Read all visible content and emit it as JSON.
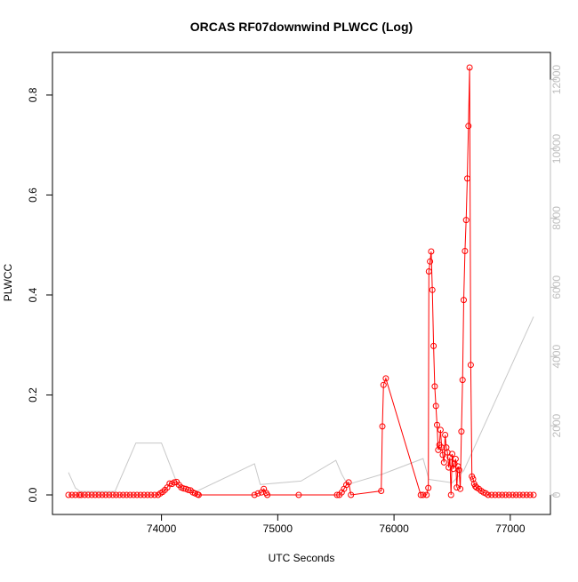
{
  "chart_data": {
    "type": "line",
    "title": "ORCAS RF07downwind PLWCC (Log)",
    "xlabel": "UTC Seconds",
    "ylabel": "PLWCC",
    "xlim": [
      73200,
      77200
    ],
    "ylim": [
      0,
      0.855
    ],
    "y2lim": [
      0,
      12350
    ],
    "x_ticks": [
      74000,
      75000,
      76000,
      77000
    ],
    "y_ticks": [
      0.0,
      0.2,
      0.4,
      0.6,
      0.8
    ],
    "y_tick_labels": [
      "0.0",
      "0.2",
      "0.4",
      "0.6",
      "0.8"
    ],
    "y2_ticks": [
      0,
      2000,
      4000,
      6000,
      8000,
      10000,
      12000
    ],
    "grid": false,
    "colors": {
      "primary": "#ff0000",
      "secondary": "#c8c8c8",
      "axis": "#000000",
      "axis2": "#bebebe"
    },
    "series": [
      {
        "axis": "left",
        "color": "#ff0000",
        "markers": "open-circle",
        "x": [
          73200,
          73230,
          73260,
          73290,
          73310,
          73340,
          73370,
          73400,
          73430,
          73460,
          73490,
          73520,
          73550,
          73580,
          73610,
          73640,
          73670,
          73700,
          73730,
          73760,
          73790,
          73820,
          73850,
          73880,
          73910,
          73940,
          73970,
          73990,
          74010,
          74030,
          74050,
          74070,
          74090,
          74110,
          74130,
          74150,
          74170,
          74190,
          74210,
          74230,
          74250,
          74270,
          74290,
          74310,
          74320,
          74800,
          74830,
          74860,
          74880,
          74900,
          74910,
          75180,
          75510,
          75530,
          75550,
          75570,
          75590,
          75610,
          75630,
          75890,
          75900,
          75910,
          75930,
          76230,
          76250,
          76280,
          76295,
          76300,
          76310,
          76320,
          76330,
          76340,
          76350,
          76360,
          76370,
          76380,
          76390,
          76400,
          76410,
          76420,
          76430,
          76440,
          76450,
          76460,
          76470,
          76480,
          76490,
          76500,
          76510,
          76520,
          76530,
          76540,
          76550,
          76560,
          76570,
          76580,
          76590,
          76600,
          76610,
          76620,
          76630,
          76640,
          76650,
          76660,
          76670,
          76680,
          76690,
          76700,
          76710,
          76730,
          76750,
          76770,
          76790,
          76810,
          76840,
          76870,
          76900,
          76930,
          76960,
          76990,
          77020,
          77050,
          77080,
          77110,
          77140,
          77170,
          77200
        ],
        "y": [
          0.0,
          0.0,
          0.0,
          0.0,
          0.0,
          0.0,
          0.0,
          0.0,
          0.0,
          0.0,
          0.0,
          0.0,
          0.0,
          0.0,
          0.0,
          0.0,
          0.0,
          0.0,
          0.0,
          0.0,
          0.0,
          0.0,
          0.0,
          0.0,
          0.0,
          0.0,
          0.0,
          0.003,
          0.006,
          0.01,
          0.015,
          0.023,
          0.022,
          0.025,
          0.026,
          0.02,
          0.015,
          0.013,
          0.012,
          0.01,
          0.009,
          0.005,
          0.003,
          0.001,
          0.0,
          0.0,
          0.003,
          0.005,
          0.012,
          0.004,
          0.0,
          0.0,
          0.0,
          0.0,
          0.005,
          0.012,
          0.02,
          0.025,
          0.0,
          0.008,
          0.137,
          0.22,
          0.233,
          0.0,
          0.0,
          0.0,
          0.014,
          0.447,
          0.467,
          0.487,
          0.41,
          0.298,
          0.217,
          0.178,
          0.14,
          0.09,
          0.1,
          0.13,
          0.095,
          0.08,
          0.065,
          0.12,
          0.095,
          0.085,
          0.055,
          0.075,
          0.0,
          0.082,
          0.052,
          0.062,
          0.072,
          0.015,
          0.057,
          0.05,
          0.012,
          0.127,
          0.23,
          0.39,
          0.488,
          0.55,
          0.633,
          0.738,
          0.855,
          0.26,
          0.037,
          0.032,
          0.022,
          0.017,
          0.015,
          0.012,
          0.008,
          0.005,
          0.003,
          0.0,
          0.0,
          0.0,
          0.0,
          0.0,
          0.0,
          0.0,
          0.0,
          0.0,
          0.0,
          0.0,
          0.0,
          0.0,
          0.0
        ]
      },
      {
        "axis": "right",
        "color": "#c8c8c8",
        "markers": "none",
        "x": [
          73200,
          73260,
          73300,
          73400,
          73600,
          73780,
          74000,
          74150,
          74300,
          74800,
          74850,
          75200,
          75500,
          75550,
          75600,
          75900,
          76250,
          76300,
          76400,
          76500,
          76600,
          77200
        ],
        "y": [
          650,
          200,
          100,
          100,
          100,
          1500,
          1500,
          200,
          100,
          900,
          300,
          400,
          1000,
          600,
          300,
          600,
          1050,
          450,
          400,
          350,
          700,
          5150
        ]
      }
    ]
  }
}
